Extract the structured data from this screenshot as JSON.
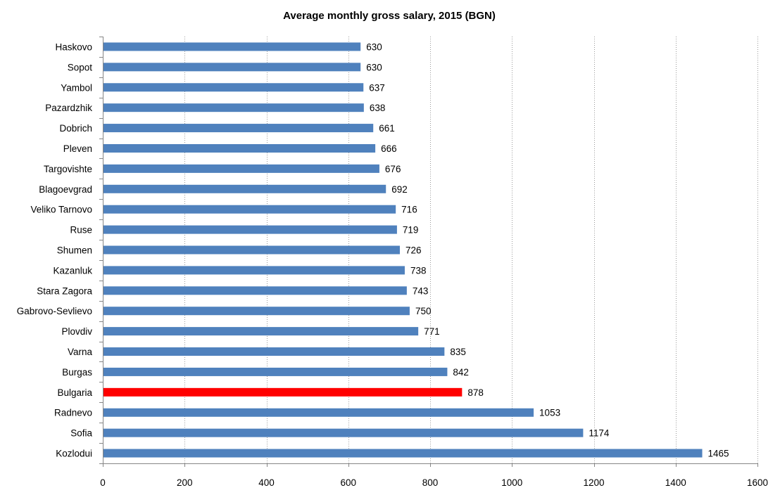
{
  "chart_data": {
    "type": "bar",
    "orientation": "horizontal",
    "title": "Average monthly gross salary, 2015 (BGN)",
    "categories": [
      "Haskovo",
      "Sopot",
      "Yambol",
      "Pazardzhik",
      "Dobrich",
      "Pleven",
      "Targovishte",
      "Blagoevgrad",
      "Veliko Tarnovo",
      "Ruse",
      "Shumen",
      "Kazanluk",
      "Stara Zagora",
      "Gabrovo-Sevlievo",
      "Plovdiv",
      "Varna",
      "Burgas",
      "Bulgaria",
      "Radnevo",
      "Sofia",
      "Kozlodui"
    ],
    "values": [
      630,
      630,
      637,
      638,
      661,
      666,
      676,
      692,
      716,
      719,
      726,
      738,
      743,
      750,
      771,
      835,
      842,
      878,
      1053,
      1174,
      1465
    ],
    "highlight_category": "Bulgaria",
    "xlim": [
      0,
      1600
    ],
    "x_ticks": [
      "0",
      "200",
      "400",
      "600",
      "800",
      "1000",
      "1200",
      "1400",
      "1600"
    ],
    "grid": "vertical dotted",
    "colors": {
      "bar": "#4f81bd",
      "highlight": "#ff0000",
      "grid": "#999999",
      "axis": "#868686"
    }
  }
}
